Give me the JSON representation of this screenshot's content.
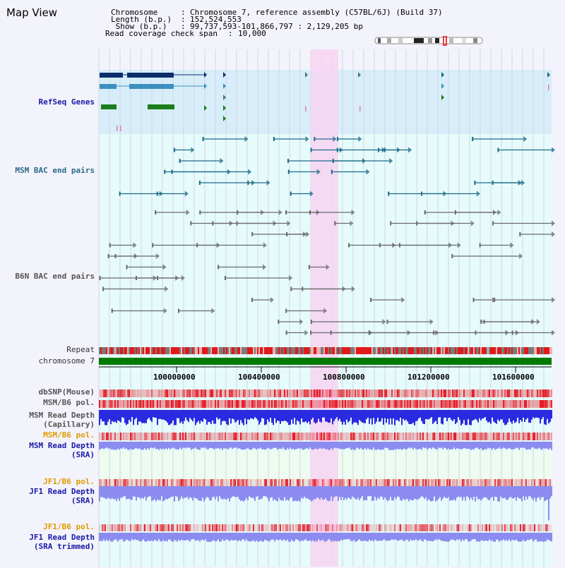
{
  "header": {
    "title": "Map View",
    "chromosome_key": "Chromosome    ",
    "chromosome_val": "Chromosome 7, reference assembly (C57BL/6J) (Build 37)",
    "length_key": "Length (b.p.)",
    "length_val": "152,524,553",
    "show_key": " Show (b.p.)",
    "show_val": "99,737,593-101,866,797 : 2,129,205 bp",
    "coverage_key": "Read coverage check span",
    "coverage_val": "10,000"
  },
  "tracks": {
    "refseq": "RefSeq Genes",
    "msm_bac": "MSM BAC end pairs",
    "b6n_bac": "B6N BAC end pairs",
    "repeat": "Repeat",
    "chromosome": "chromosome 7",
    "dbsnp": "dbSNP(Mouse)",
    "msm_b6_pol_1": "MSM/B6 pol.",
    "msm_read_cap_1": "MSM Read Depth",
    "msm_read_cap_2": "(Capillary)",
    "msm_b6_pol_2": "MSM/B6 pol.",
    "msm_read_sra_1": "MSM Read Depth",
    "msm_read_sra_2": "(SRA)",
    "jf1_b6_pol_1": "JF1/B6 pol.",
    "jf1_read_sra_1": "JF1 Read Depth",
    "jf1_read_sra_2": "(SRA)",
    "jf1_b6_pol_2": "JF1/B6 pol.",
    "jf1_trim_1": "JF1 Read Depth",
    "jf1_trim_2": "(SRA trimmed)"
  },
  "axis": {
    "ticks": [
      "100000000",
      "100400000",
      "100800000",
      "101200000",
      "101600000"
    ]
  },
  "colors": {
    "highlight": "#f7d4f2",
    "refseq_bg": "#d7eefa",
    "track_bg": "#e6fbfb",
    "chrom_bar": "#007a00",
    "depth_blue": "#2a2ae0",
    "depth_violet": "#8c8cf0"
  }
}
